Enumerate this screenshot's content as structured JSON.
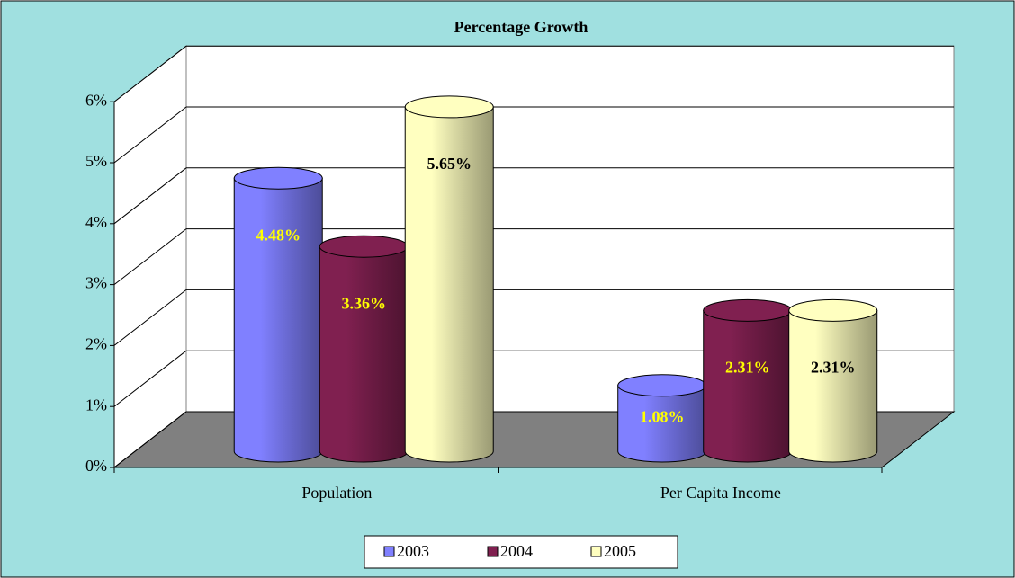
{
  "chart_data": {
    "type": "bar3d",
    "title": "Percentage Growth",
    "categories": [
      "Population",
      "Per Capita Income"
    ],
    "series": [
      {
        "name": "2003",
        "color": "#8080ff",
        "label_color": "#ffff00",
        "values": [
          4.48,
          1.08
        ],
        "value_labels": [
          "4.48%",
          "1.08%"
        ]
      },
      {
        "name": "2004",
        "color": "#802050",
        "label_color": "#ffff00",
        "values": [
          3.36,
          2.31
        ],
        "value_labels": [
          "3.36%",
          "2.31%"
        ]
      },
      {
        "name": "2005",
        "color": "#ffffc0",
        "label_color": "#000000",
        "values": [
          5.65,
          2.31
        ],
        "value_labels": [
          "5.65%",
          "2.31%"
        ]
      }
    ],
    "ylim": [
      0,
      6
    ],
    "yticks": [
      {
        "value": 0,
        "label": "0%"
      },
      {
        "value": 1,
        "label": "1%"
      },
      {
        "value": 2,
        "label": "2%"
      },
      {
        "value": 3,
        "label": "3%"
      },
      {
        "value": 4,
        "label": "4%"
      },
      {
        "value": 5,
        "label": "5%"
      },
      {
        "value": 6,
        "label": "6%"
      }
    ],
    "grid": true,
    "legend": "bottom"
  }
}
